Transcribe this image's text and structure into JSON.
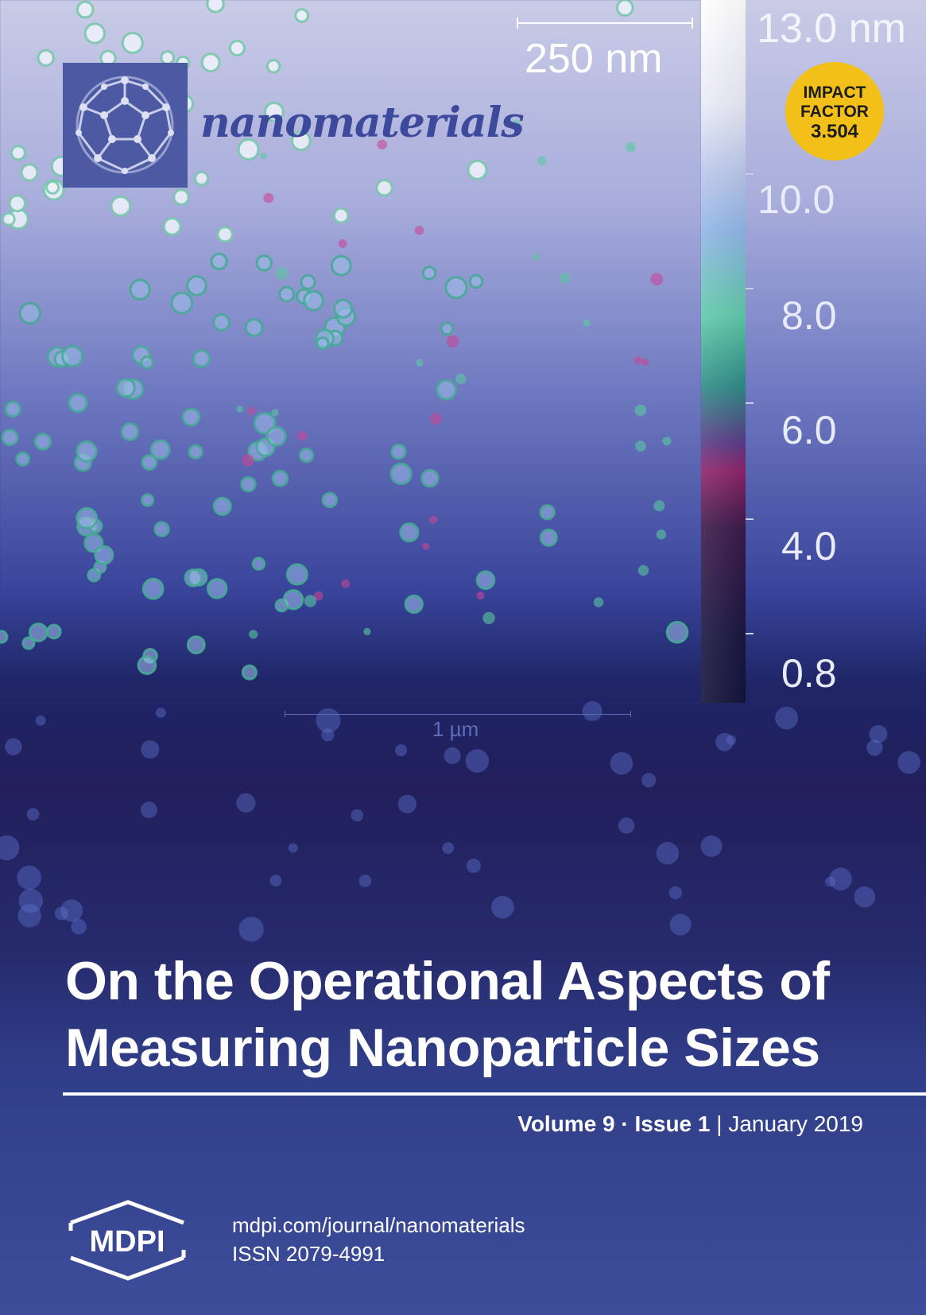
{
  "journal": {
    "name": "nanomaterials",
    "logo_icon": "fullerene-icon",
    "impact_factor": {
      "line1": "IMPACT",
      "line2": "FACTOR",
      "value": "3.504"
    }
  },
  "image": {
    "scale_bar_top": "250 nm",
    "scale_bar_bottom": "1 µm",
    "colorbar": {
      "unit_label": "13.0 nm",
      "ticks": [
        "10.0",
        "8.0",
        "6.0",
        "4.0",
        "0.8"
      ]
    }
  },
  "article": {
    "title_line1": "On the Operational Aspects of",
    "title_line2": "Measuring Nanoparticle Sizes"
  },
  "issue": {
    "volume": "Volume 9",
    "separator": "·",
    "issue": "Issue 1",
    "divider": "|",
    "date": "January 2019"
  },
  "publisher": {
    "logo_text": "MDPI",
    "website": "mdpi.com/journal/nanomaterials",
    "issn": "ISSN 2079-4991"
  },
  "colors": {
    "badge": "#f3c01a",
    "logo_box": "#4b5aa3",
    "journal_name": "#3d4a9c"
  }
}
